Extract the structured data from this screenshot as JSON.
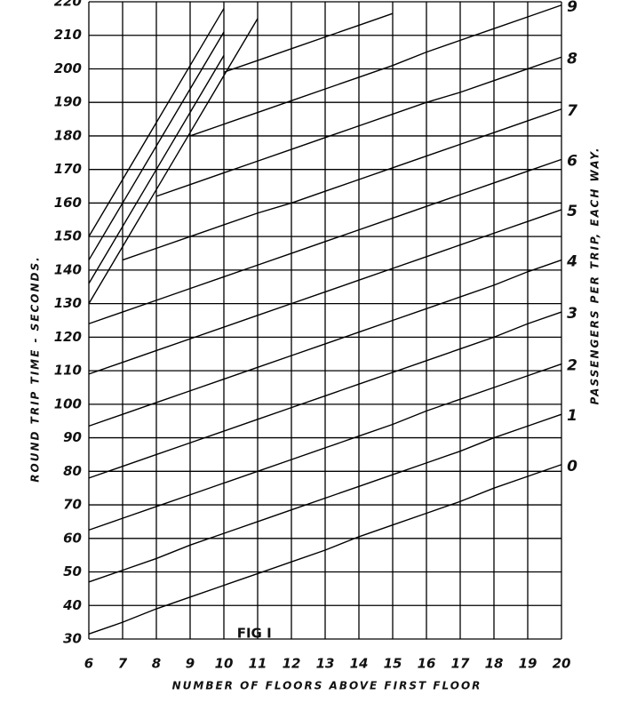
{
  "chart_data": {
    "type": "line",
    "annotation": "FIG I",
    "xlabel": "NUMBER OF FLOORS ABOVE FIRST FLOOR",
    "ylabel": "ROUND TRIP TIME - SECONDS.",
    "y2label": "PASSENGERS PER TRIP, EACH WAY.",
    "x": [
      6,
      7,
      8,
      9,
      10,
      11,
      12,
      13,
      14,
      15,
      16,
      17,
      18,
      19,
      20
    ],
    "xlim": [
      6,
      20
    ],
    "ylim": [
      30,
      220
    ],
    "xticks": [
      6,
      7,
      8,
      9,
      10,
      11,
      12,
      13,
      14,
      15,
      16,
      17,
      18,
      19,
      20
    ],
    "yticks": [
      30,
      40,
      50,
      60,
      70,
      80,
      90,
      100,
      110,
      120,
      130,
      140,
      150,
      160,
      170,
      180,
      190,
      200,
      210,
      220
    ],
    "grid": true,
    "color": "#000000",
    "series": [
      {
        "name": "0",
        "values": [
          31.5,
          35,
          39,
          42.5,
          46,
          49.5,
          53,
          56.5,
          60.5,
          64,
          67.5,
          71,
          75,
          78.5,
          82
        ]
      },
      {
        "name": "1",
        "values": [
          47,
          50.5,
          54,
          58,
          61.5,
          65,
          68.5,
          72,
          75.5,
          79,
          82.5,
          86,
          90,
          93.5,
          97
        ]
      },
      {
        "name": "2",
        "values": [
          62.5,
          66,
          69.5,
          73,
          76.5,
          80,
          83.5,
          87,
          90.5,
          94,
          98,
          101.5,
          105,
          108.5,
          112
        ]
      },
      {
        "name": "3",
        "values": [
          78,
          81.5,
          85,
          88.5,
          92,
          95.5,
          99,
          102.5,
          106,
          109.5,
          113,
          116.5,
          120,
          124,
          127.5
        ]
      },
      {
        "name": "4",
        "values": [
          93.5,
          97,
          100.5,
          104,
          107.5,
          111,
          114.5,
          118,
          121.5,
          125,
          128.5,
          132,
          135.5,
          139.5,
          143
        ]
      },
      {
        "name": "5",
        "values": [
          109,
          112.5,
          116,
          119.5,
          123,
          126.5,
          130,
          133.5,
          137,
          140.5,
          144,
          147.5,
          151,
          154.5,
          158
        ]
      },
      {
        "name": "6",
        "values": [
          124,
          127.5,
          131,
          134.5,
          138,
          141.5,
          145,
          148.5,
          152,
          155.5,
          159,
          162.5,
          166,
          169.5,
          173
        ]
      },
      {
        "name": "7",
        "values": [
          null,
          143,
          146.5,
          150,
          153.5,
          157,
          160,
          163.5,
          167,
          170.5,
          174,
          177.5,
          181,
          184.5,
          188
        ]
      },
      {
        "name": "8",
        "values": [
          null,
          null,
          162,
          165.5,
          169,
          172.5,
          176,
          179.5,
          183,
          186.5,
          190,
          193,
          196.5,
          200,
          203.5
        ]
      },
      {
        "name": "9",
        "values": [
          null,
          null,
          null,
          180,
          183.5,
          187,
          190.5,
          194,
          197.5,
          201,
          205,
          208.5,
          212,
          215.5,
          219
        ]
      },
      {
        "values": [
          null,
          null,
          null,
          null,
          199,
          202.5,
          206,
          209.5,
          213,
          216.5,
          null,
          null,
          null,
          null,
          null
        ]
      },
      {
        "values": [
          150,
          167,
          184,
          201,
          218,
          null,
          null,
          null,
          null,
          null,
          null,
          null,
          null,
          null,
          null
        ]
      },
      {
        "values": [
          143,
          160,
          177,
          194,
          211,
          null,
          null,
          null,
          null,
          null,
          null,
          null,
          null,
          null,
          null
        ]
      },
      {
        "values": [
          136,
          153,
          170,
          187,
          204,
          null,
          null,
          null,
          null,
          null,
          null,
          null,
          null,
          null,
          null
        ]
      },
      {
        "values": [
          130,
          147,
          164,
          181,
          198,
          215,
          null,
          null,
          null,
          null,
          null,
          null,
          null,
          null,
          null
        ]
      }
    ]
  }
}
